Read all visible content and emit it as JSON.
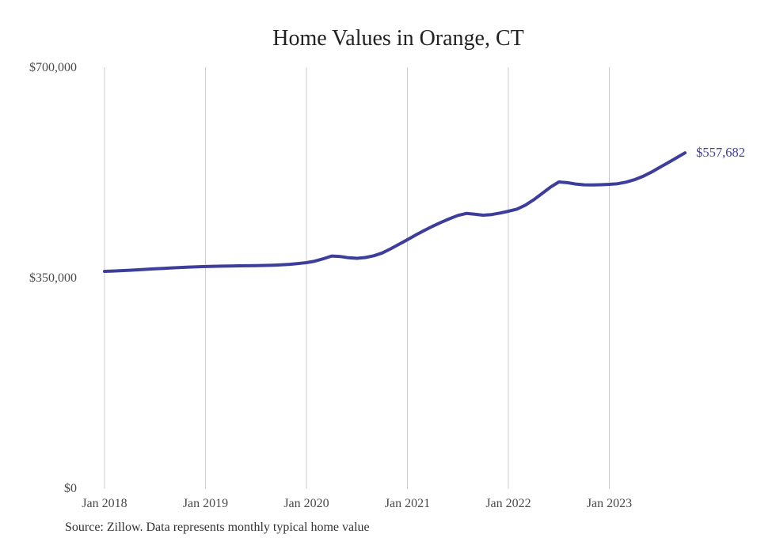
{
  "page": {
    "title": "Home Values in Orange, CT",
    "source_note": "Source: Zillow. Data represents monthly typical home value"
  },
  "colors": {
    "line": "#3d3d9c",
    "end_label": "#3d3d9c",
    "grid": "#cccccc",
    "axis_text": "#4a4a4a",
    "title_text": "#222222",
    "source_text": "#333333",
    "background": "#ffffff"
  },
  "chart_data": {
    "type": "line",
    "title": "Home Values in Orange, CT",
    "x_start": "2018-01",
    "x_interval": "monthly",
    "x_tick_labels": [
      "Jan 2018",
      "Jan 2019",
      "Jan 2020",
      "Jan 2021",
      "Jan 2022",
      "Jan 2023"
    ],
    "x_tick_month_indexes": [
      0,
      12,
      24,
      36,
      48,
      60
    ],
    "y_tick_labels": [
      "$0",
      "$350,000",
      "$700,000"
    ],
    "y_tick_values": [
      0,
      350000,
      700000
    ],
    "ylim": [
      0,
      700000
    ],
    "grid": "vertical-only",
    "legend": "none",
    "end_label": "$557,682",
    "end_value": 557682,
    "series": [
      {
        "name": "Typical home value",
        "values": [
          360500,
          361100,
          361700,
          362400,
          363100,
          363900,
          364700,
          365500,
          366300,
          367000,
          367600,
          368100,
          368500,
          368900,
          369200,
          369500,
          369700,
          369900,
          370100,
          370400,
          370800,
          371400,
          372300,
          373600,
          375000,
          377500,
          381500,
          386000,
          385200,
          383200,
          382200,
          383500,
          386500,
          391000,
          398000,
          405500,
          413200,
          421000,
          428500,
          435500,
          442000,
          448000,
          453500,
          456800,
          455500,
          453900,
          455000,
          457500,
          460500,
          464000,
          470500,
          479500,
          490000,
          500500,
          509200,
          508000,
          505800,
          504500,
          504200,
          504600,
          505200,
          506300,
          509000,
          513000,
          518500,
          525500,
          533500,
          541500,
          549500,
          557682
        ]
      }
    ]
  }
}
